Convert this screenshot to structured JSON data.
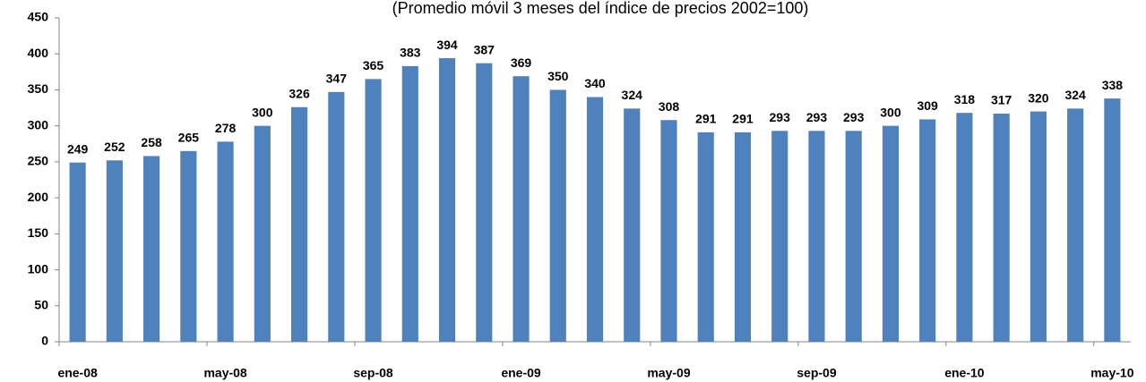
{
  "chart_data": {
    "type": "bar",
    "title": "(Promedio móvil 3 meses del índice de precios 2002=100)",
    "categories": [
      "ene-08",
      null,
      null,
      null,
      "may-08",
      null,
      null,
      null,
      "sep-08",
      null,
      null,
      null,
      "ene-09",
      null,
      null,
      null,
      "may-09",
      null,
      null,
      null,
      "sep-09",
      null,
      null,
      null,
      "ene-10",
      null,
      null,
      null,
      "may-10"
    ],
    "values": [
      249,
      252,
      258,
      265,
      278,
      300,
      326,
      347,
      365,
      383,
      394,
      387,
      369,
      350,
      340,
      324,
      308,
      291,
      291,
      293,
      293,
      293,
      300,
      309,
      318,
      317,
      320,
      324,
      338
    ],
    "color": "#4f81bd",
    "ylim": [
      0,
      450
    ],
    "yticks": [
      0,
      50,
      100,
      150,
      200,
      250,
      300,
      350,
      400,
      450
    ],
    "grid": false
  }
}
